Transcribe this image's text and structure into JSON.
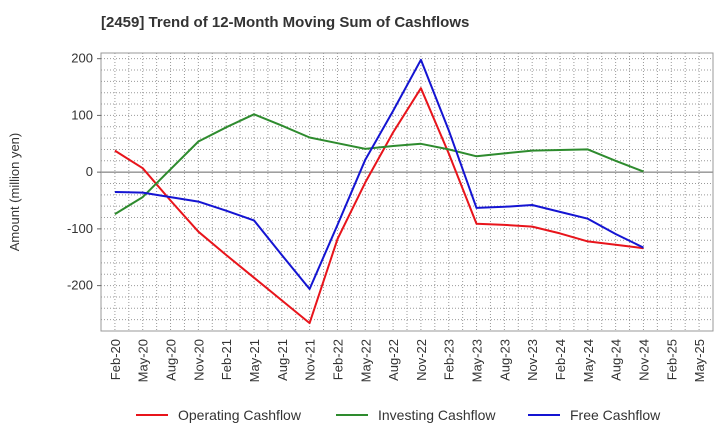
{
  "chart_data": {
    "type": "line",
    "title": "[2459]  Trend of 12-Month Moving Sum of Cashflows",
    "ylabel": "Amount (million yen)",
    "xlabel": "",
    "categories": [
      "Feb-20",
      "May-20",
      "Aug-20",
      "Nov-20",
      "Feb-21",
      "May-21",
      "Aug-21",
      "Nov-21",
      "Feb-22",
      "May-22",
      "Aug-22",
      "Nov-22",
      "Feb-23",
      "May-23",
      "Aug-23",
      "Nov-23",
      "Feb-24",
      "May-24",
      "Aug-24",
      "Nov-24",
      "Feb-25",
      "May-25"
    ],
    "ylim": [
      -280,
      210
    ],
    "yticks": [
      200,
      100,
      0,
      -100,
      -200
    ],
    "ytick_labels": [
      "200",
      "100",
      "0",
      "-100",
      "-200"
    ],
    "grid": true,
    "legend_position": "bottom",
    "series": [
      {
        "name": "Operating Cashflow",
        "color": "#e8141b",
        "values": [
          38,
          7,
          -50,
          -105,
          -146,
          -186,
          -226,
          -266,
          -118,
          -18,
          70,
          148,
          33,
          -91,
          -93,
          -96,
          -108,
          -122,
          -128,
          -134,
          null,
          null
        ]
      },
      {
        "name": "Investing Cashflow",
        "color": "#2e8b2e",
        "values": [
          -74,
          -44,
          5,
          54,
          79,
          102,
          82,
          61,
          51,
          41,
          46,
          50,
          40,
          28,
          33,
          38,
          39,
          40,
          20,
          1,
          null,
          null
        ]
      },
      {
        "name": "Free Cashflow",
        "color": "#1414d2",
        "values": [
          -35,
          -36,
          -44,
          -52,
          -68,
          -85,
          -146,
          -206,
          -93,
          22,
          108,
          198,
          74,
          -63,
          -61,
          -58,
          -70,
          -82,
          -109,
          -133,
          null,
          null
        ]
      }
    ]
  }
}
